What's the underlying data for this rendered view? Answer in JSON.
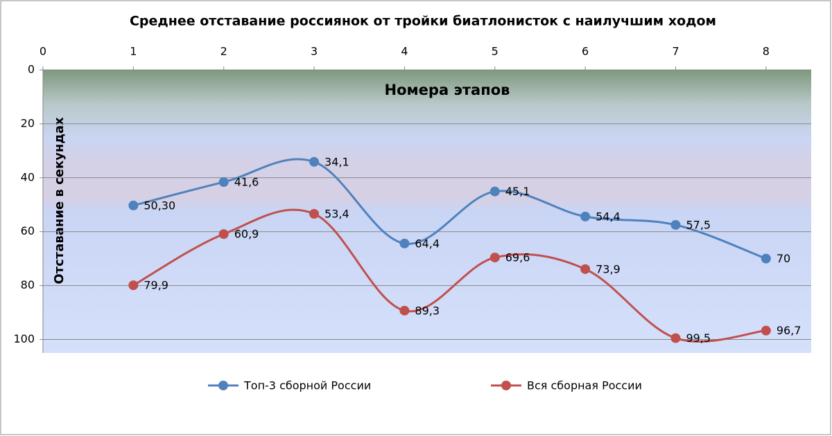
{
  "chart_data": {
    "type": "line",
    "title": "Среднее отставание россиянок от тройки  биатлонисток с наилучшим ходом",
    "x_label": "Номера  этапов",
    "y_label": "Отставание  в секундах",
    "x": [
      1,
      2,
      3,
      4,
      5,
      6,
      7,
      8
    ],
    "xlim": [
      0,
      8.5
    ],
    "xticks": [
      0,
      1,
      2,
      3,
      4,
      5,
      6,
      7,
      8
    ],
    "x_axis_position": "top",
    "ylim": [
      0,
      105
    ],
    "yticks": [
      0,
      20,
      40,
      60,
      80,
      100
    ],
    "y_reversed": true,
    "grid": true,
    "smooth": true,
    "legend": "bottom",
    "series": [
      {
        "name": "Топ-3 сборной России",
        "color": "#4f81bd",
        "values": [
          50.3,
          41.6,
          34.1,
          64.4,
          45.1,
          54.4,
          57.5,
          70
        ],
        "value_labels": [
          "50,30",
          "41,6",
          "34,1",
          "64,4",
          "45,1",
          "54,4",
          "57,5",
          "70"
        ]
      },
      {
        "name": "Вся сборная России",
        "color": "#c0504d",
        "values": [
          79.9,
          60.9,
          53.4,
          89.3,
          69.6,
          73.9,
          99.5,
          96.7
        ],
        "value_labels": [
          "79,9",
          "60,9",
          "53,4",
          "89,3",
          "69,6",
          "73,9",
          "99,5",
          "96,7"
        ]
      }
    ]
  }
}
